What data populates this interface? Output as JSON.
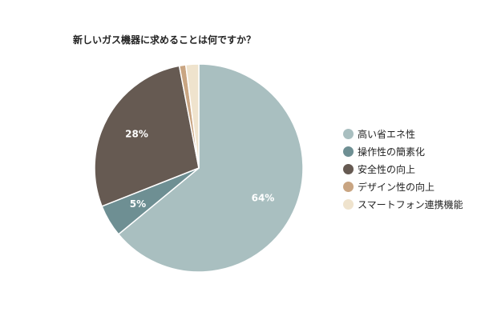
{
  "chart_data": {
    "type": "pie",
    "title": "新しいガス機器に求めることは何ですか？",
    "categories": [
      "高い省エネ性",
      "操作性の簡素化",
      "安全性の向上",
      "デザイン性の向上",
      "スマートフォン連携機能"
    ],
    "values": [
      64,
      5,
      28,
      1,
      2
    ],
    "data_labels": [
      "64%",
      "5%",
      "28%",
      "",
      ""
    ],
    "colors": [
      "#a9bfc0",
      "#6e8f93",
      "#665a52",
      "#c9a582",
      "#efe3cd"
    ],
    "legend_position": "right"
  }
}
